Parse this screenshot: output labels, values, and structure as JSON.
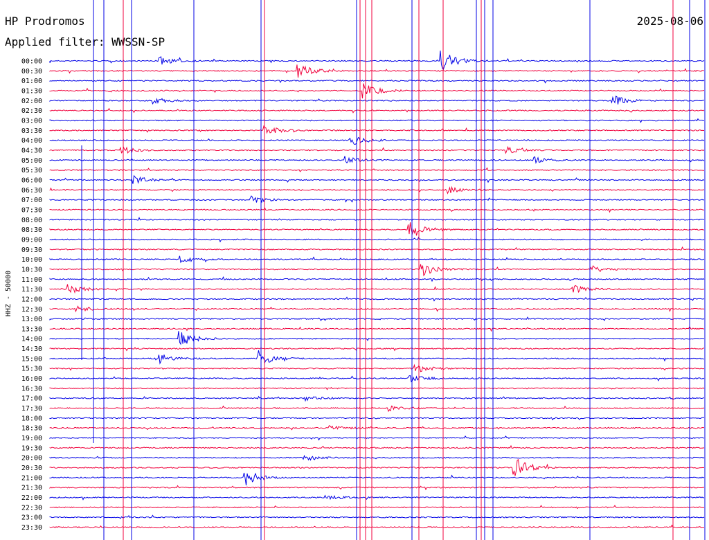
{
  "chart_data": {
    "type": "line",
    "title": "HP Prodromos",
    "date": "2025-08-06",
    "subtitle": "Applied filter: WWSSN-SP",
    "ylabel": "HHZ - 50000",
    "row_labels": [
      "00:00",
      "00:30",
      "01:00",
      "01:30",
      "02:00",
      "02:30",
      "03:00",
      "03:30",
      "04:00",
      "04:30",
      "05:00",
      "05:30",
      "06:00",
      "06:30",
      "07:00",
      "07:30",
      "08:00",
      "08:30",
      "09:00",
      "09:30",
      "10:00",
      "10:30",
      "11:00",
      "11:30",
      "12:00",
      "12:30",
      "13:00",
      "13:30",
      "14:00",
      "14:30",
      "15:00",
      "15:30",
      "16:00",
      "16:30",
      "17:00",
      "17:30",
      "18:00",
      "18:30",
      "19:00",
      "19:30",
      "20:00",
      "20:30",
      "21:00",
      "21:30",
      "22:00",
      "22:30",
      "23:00",
      "23:30"
    ],
    "trace_colors": [
      "#0000e6",
      "#f0003c"
    ],
    "events": [
      {
        "row": "00:00",
        "t": 0.17,
        "amp": 0.6
      },
      {
        "row": "00:00",
        "t": 0.6,
        "amp": 1.6
      },
      {
        "row": "00:30",
        "t": 0.38,
        "amp": 1.3
      },
      {
        "row": "01:30",
        "t": 0.48,
        "amp": 1.2
      },
      {
        "row": "02:00",
        "t": 0.16,
        "amp": 0.5
      },
      {
        "row": "02:00",
        "t": 0.86,
        "amp": 0.8
      },
      {
        "row": "03:30",
        "t": 0.33,
        "amp": 0.7
      },
      {
        "row": "04:00",
        "t": 0.46,
        "amp": 0.8
      },
      {
        "row": "04:30",
        "t": 0.11,
        "amp": 0.6
      },
      {
        "row": "04:30",
        "t": 0.7,
        "amp": 0.5
      },
      {
        "row": "05:00",
        "t": 0.45,
        "amp": 0.6
      },
      {
        "row": "05:00",
        "t": 0.74,
        "amp": 0.5
      },
      {
        "row": "06:00",
        "t": 0.13,
        "amp": 0.6
      },
      {
        "row": "06:30",
        "t": 0.61,
        "amp": 0.5
      },
      {
        "row": "07:00",
        "t": 0.31,
        "amp": 0.6
      },
      {
        "row": "08:30",
        "t": 0.55,
        "amp": 1.5
      },
      {
        "row": "10:00",
        "t": 0.2,
        "amp": 0.6
      },
      {
        "row": "10:30",
        "t": 0.57,
        "amp": 1.0
      },
      {
        "row": "10:30",
        "t": 0.83,
        "amp": 0.5
      },
      {
        "row": "11:30",
        "t": 0.03,
        "amp": 0.7
      },
      {
        "row": "11:30",
        "t": 0.8,
        "amp": 0.6
      },
      {
        "row": "12:30",
        "t": 0.04,
        "amp": 0.5
      },
      {
        "row": "14:00",
        "t": 0.2,
        "amp": 1.2
      },
      {
        "row": "15:00",
        "t": 0.17,
        "amp": 0.7
      },
      {
        "row": "15:00",
        "t": 0.32,
        "amp": 1.3
      },
      {
        "row": "15:30",
        "t": 0.56,
        "amp": 0.6
      },
      {
        "row": "16:00",
        "t": 0.55,
        "amp": 0.6
      },
      {
        "row": "17:00",
        "t": 0.39,
        "amp": 0.4
      },
      {
        "row": "17:30",
        "t": 0.52,
        "amp": 0.5
      },
      {
        "row": "18:30",
        "t": 0.43,
        "amp": 0.4
      },
      {
        "row": "20:00",
        "t": 0.39,
        "amp": 0.5
      },
      {
        "row": "20:30",
        "t": 0.71,
        "amp": 1.8
      },
      {
        "row": "21:00",
        "t": 0.3,
        "amp": 1.2
      },
      {
        "row": "22:00",
        "t": 0.42,
        "amp": 0.5
      }
    ]
  }
}
